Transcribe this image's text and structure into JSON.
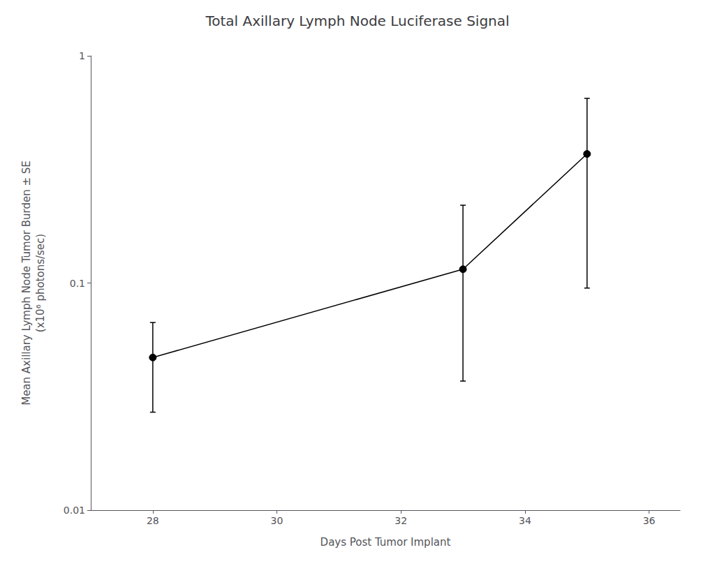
{
  "chart_data": {
    "type": "line",
    "title": "Total Axillary Lymph Node Luciferase Signal",
    "xlabel": "Days Post Tumor Implant",
    "ylabel": "Mean Axillary Lymph Node Tumor Burden ± SE\n(x10⁶ photons/sec)",
    "x": [
      28,
      33,
      35
    ],
    "values": [
      0.047,
      0.115,
      0.37
    ],
    "error_lower": [
      0.02,
      0.078,
      0.275
    ],
    "error_upper": [
      0.02,
      0.105,
      0.28
    ],
    "color": "#000000",
    "marker": "circle",
    "log": "y",
    "grid": false,
    "xlim": [
      27.0,
      36.5
    ],
    "xticks": [
      28,
      30,
      32,
      34,
      36
    ],
    "ylim": [
      0.01,
      1.0
    ],
    "yticks": [
      0.01,
      0.1,
      1
    ]
  }
}
